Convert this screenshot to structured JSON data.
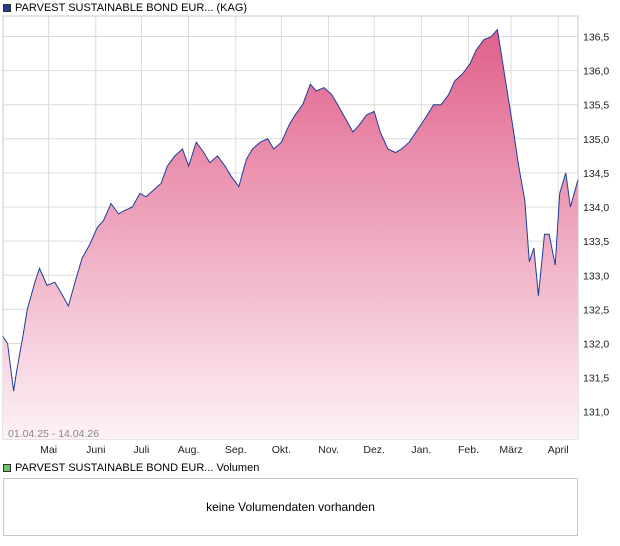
{
  "chart_data": {
    "type": "area",
    "legend": {
      "price_label": "PARVEST SUSTAINABLE BOND EUR... (KAG)",
      "price_color": "#1f3c9a",
      "volume_label": "PARVEST SUSTAINABLE BOND EUR... Volumen",
      "volume_color": "#6cc36c"
    },
    "date_range_label": "01.04.25 - 14.04.26",
    "x_ticks": [
      "Mai",
      "Juni",
      "Juli",
      "Aug.",
      "Sep.",
      "Okt.",
      "Nov.",
      "Dez.",
      "Jan.",
      "Feb.",
      "März",
      "April"
    ],
    "y_ticks": [
      "131,0",
      "131,5",
      "132,0",
      "132,5",
      "133,0",
      "133,5",
      "134,0",
      "134,5",
      "135,0",
      "135,5",
      "136,0",
      "136,5"
    ],
    "y_tick_values": [
      131.0,
      131.5,
      132.0,
      132.5,
      133.0,
      133.5,
      134.0,
      134.5,
      135.0,
      135.5,
      136.0,
      136.5
    ],
    "ylim": [
      130.6,
      136.8
    ],
    "line_color": "#1f3c9a",
    "fill_top_color": "#e0608a",
    "fill_bottom_color": "#fdf2f6",
    "series": [
      {
        "points": [
          [
            "2025-04-01",
            132.1
          ],
          [
            "2025-04-04",
            132.0
          ],
          [
            "2025-04-08",
            131.3
          ],
          [
            "2025-04-10",
            131.6
          ],
          [
            "2025-04-14",
            132.1
          ],
          [
            "2025-04-17",
            132.5
          ],
          [
            "2025-04-22",
            132.9
          ],
          [
            "2025-04-25",
            133.1
          ],
          [
            "2025-04-30",
            132.85
          ],
          [
            "2025-05-05",
            132.9
          ],
          [
            "2025-05-09",
            132.75
          ],
          [
            "2025-05-14",
            132.55
          ],
          [
            "2025-05-19",
            132.95
          ],
          [
            "2025-05-23",
            133.25
          ],
          [
            "2025-05-28",
            133.45
          ],
          [
            "2025-06-02",
            133.7
          ],
          [
            "2025-06-06",
            133.8
          ],
          [
            "2025-06-11",
            134.05
          ],
          [
            "2025-06-16",
            133.9
          ],
          [
            "2025-06-20",
            133.95
          ],
          [
            "2025-06-25",
            134.0
          ],
          [
            "2025-06-30",
            134.2
          ],
          [
            "2025-07-04",
            134.15
          ],
          [
            "2025-07-09",
            134.25
          ],
          [
            "2025-07-14",
            134.35
          ],
          [
            "2025-07-18",
            134.6
          ],
          [
            "2025-07-23",
            134.75
          ],
          [
            "2025-07-28",
            134.85
          ],
          [
            "2025-08-01",
            134.6
          ],
          [
            "2025-08-06",
            134.95
          ],
          [
            "2025-08-11",
            134.8
          ],
          [
            "2025-08-15",
            134.65
          ],
          [
            "2025-08-20",
            134.75
          ],
          [
            "2025-08-25",
            134.6
          ],
          [
            "2025-08-29",
            134.45
          ],
          [
            "2025-09-03",
            134.3
          ],
          [
            "2025-09-08",
            134.7
          ],
          [
            "2025-09-12",
            134.85
          ],
          [
            "2025-09-17",
            134.95
          ],
          [
            "2025-09-22",
            135.0
          ],
          [
            "2025-09-26",
            134.85
          ],
          [
            "2025-10-01",
            134.95
          ],
          [
            "2025-10-06",
            135.2
          ],
          [
            "2025-10-10",
            135.35
          ],
          [
            "2025-10-15",
            135.5
          ],
          [
            "2025-10-20",
            135.8
          ],
          [
            "2025-10-24",
            135.7
          ],
          [
            "2025-10-29",
            135.75
          ],
          [
            "2025-11-03",
            135.65
          ],
          [
            "2025-11-07",
            135.5
          ],
          [
            "2025-11-12",
            135.3
          ],
          [
            "2025-11-17",
            135.1
          ],
          [
            "2025-11-21",
            135.2
          ],
          [
            "2025-11-26",
            135.35
          ],
          [
            "2025-12-01",
            135.4
          ],
          [
            "2025-12-05",
            135.1
          ],
          [
            "2025-12-10",
            134.85
          ],
          [
            "2025-12-15",
            134.8
          ],
          [
            "2025-12-19",
            134.85
          ],
          [
            "2025-12-24",
            134.95
          ],
          [
            "2025-12-30",
            135.15
          ],
          [
            "2026-01-05",
            135.35
          ],
          [
            "2026-01-09",
            135.5
          ],
          [
            "2026-01-14",
            135.5
          ],
          [
            "2026-01-19",
            135.65
          ],
          [
            "2026-01-23",
            135.85
          ],
          [
            "2026-01-28",
            135.95
          ],
          [
            "2026-02-02",
            136.1
          ],
          [
            "2026-02-06",
            136.3
          ],
          [
            "2026-02-11",
            136.45
          ],
          [
            "2026-02-16",
            136.5
          ],
          [
            "2026-02-20",
            136.6
          ],
          [
            "2026-02-25",
            135.9
          ],
          [
            "2026-03-02",
            135.2
          ],
          [
            "2026-03-06",
            134.6
          ],
          [
            "2026-03-10",
            134.1
          ],
          [
            "2026-03-13",
            133.2
          ],
          [
            "2026-03-16",
            133.4
          ],
          [
            "2026-03-19",
            132.7
          ],
          [
            "2026-03-23",
            133.6
          ],
          [
            "2026-03-26",
            133.6
          ],
          [
            "2026-03-30",
            133.15
          ],
          [
            "2026-04-02",
            134.2
          ],
          [
            "2026-04-06",
            134.5
          ],
          [
            "2026-04-09",
            134.0
          ],
          [
            "2026-04-14",
            134.4
          ]
        ]
      }
    ],
    "volume_message": "keine Volumendaten vorhanden"
  }
}
